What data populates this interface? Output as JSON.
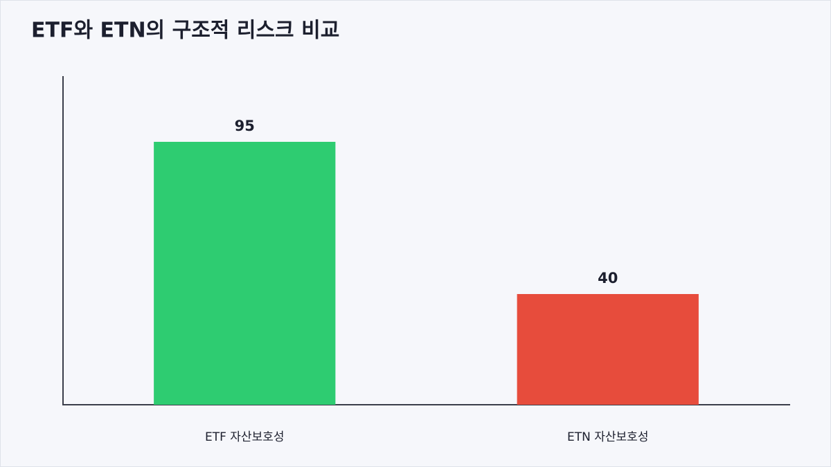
{
  "chart_data": {
    "type": "bar",
    "title": "ETF와 ETN의 구조적 리스크 비교",
    "categories": [
      "ETF 자산보호성",
      "ETN 자산보호성"
    ],
    "values": [
      95,
      40
    ],
    "colors": [
      "#2ecc71",
      "#e74c3c"
    ],
    "ylim": [
      0,
      118.75
    ]
  }
}
